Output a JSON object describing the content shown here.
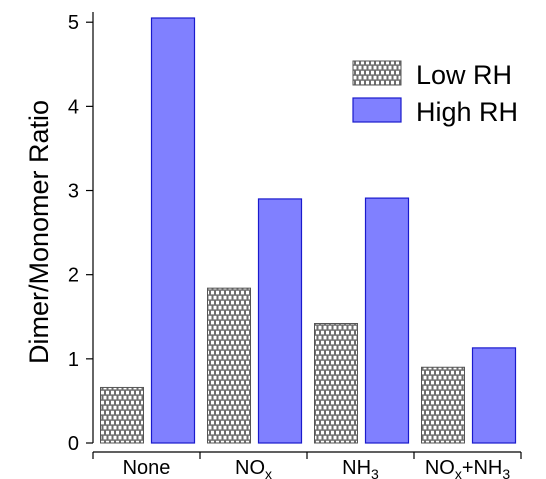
{
  "chart_data": {
    "type": "bar",
    "title": "",
    "xlabel": "",
    "ylabel": "Dimer/Monomer Ratio",
    "categories": [
      {
        "base": "None",
        "sub": "",
        "tail": ""
      },
      {
        "base": "NO",
        "sub": "x",
        "tail": ""
      },
      {
        "base": "NH",
        "sub": "3",
        "tail": ""
      },
      {
        "base": "NO",
        "sub": "x",
        "tail": "+NH",
        "sub2": "3"
      }
    ],
    "category_text": [
      "None",
      "NOx",
      "NH3",
      "NOx+NH3"
    ],
    "series": [
      {
        "name": "Low RH",
        "values": [
          0.66,
          1.84,
          1.42,
          0.9
        ],
        "color": "#8a8a8a",
        "pattern": "brick"
      },
      {
        "name": "High RH",
        "values": [
          5.05,
          2.9,
          2.91,
          1.13
        ],
        "color": "#8080ff",
        "stroke": "#1a1acc"
      }
    ],
    "ylim": [
      0,
      5.2
    ],
    "yticks": [
      "0",
      "1",
      "2",
      "3",
      "4",
      "5"
    ],
    "legend_position": "top-right",
    "grid": false
  }
}
